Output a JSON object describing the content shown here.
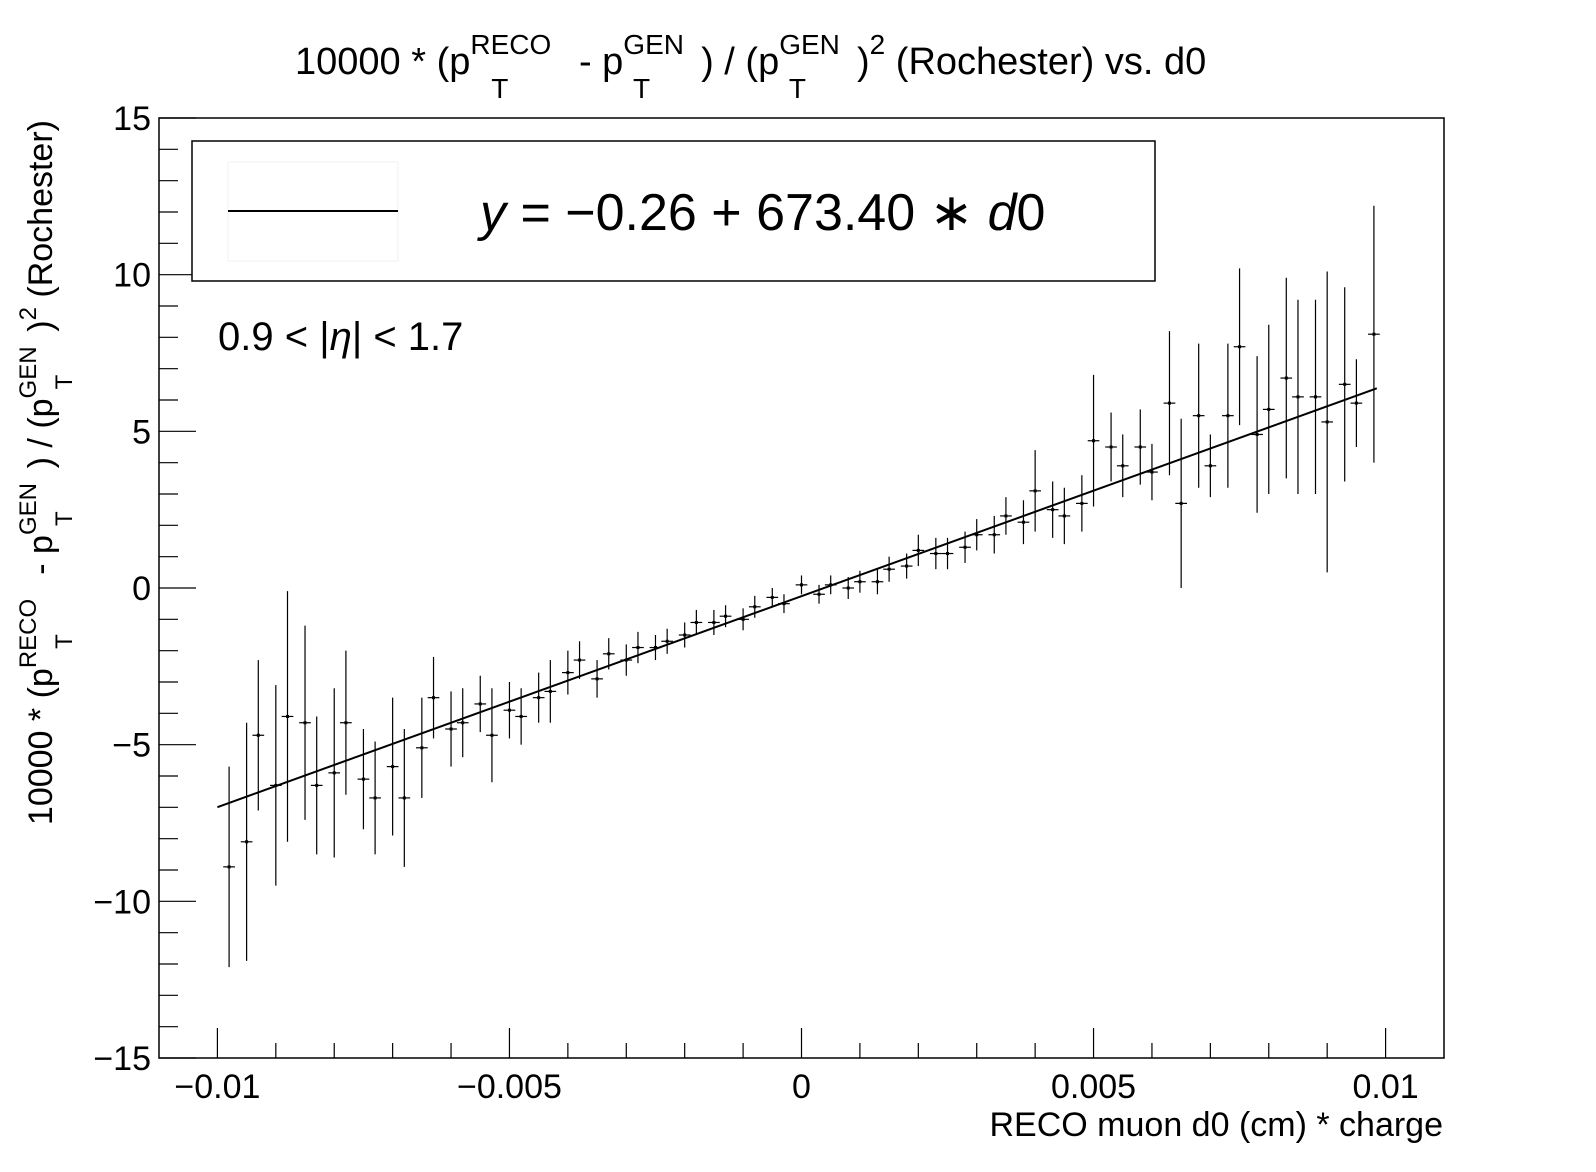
{
  "chart_data": {
    "type": "scatter",
    "title": {
      "main": "10000 * (p",
      "sup_reco": "RECO",
      "sub_t1": "T",
      "minus": " - p",
      "sup_gen1": "GEN",
      "sub_t2": "T",
      "div": ") / (p",
      "sup_gen2": "GEN",
      "sub_t3": "T",
      "close": ")",
      "sup_2": "2",
      "tail": "  (Rochester)  vs.  d0"
    },
    "xlabel": "RECO muon d0 (cm) * charge",
    "ylabel": {
      "p1": "10000 * (p",
      "sup_reco": "RECO",
      "sub_t1": "T",
      "p2": " - p",
      "sup_gen1": "GEN",
      "sub_t2": "T",
      "p3": ") / (p",
      "sup_gen2": "GEN",
      "sub_t3": "T",
      "p4": ")",
      "sup_2": "2",
      "p5": " (Rochester)"
    },
    "xlim": [
      -0.011,
      0.011
    ],
    "ylim": [
      -15,
      15
    ],
    "x_ticks": [
      -0.01,
      -0.005,
      0,
      0.005,
      0.01
    ],
    "x_tick_labels": [
      "−0.01",
      "−0.005",
      "0",
      "0.005",
      "0.01"
    ],
    "y_ticks": [
      -15,
      -10,
      -5,
      0,
      5,
      10,
      15
    ],
    "y_tick_labels": [
      "−15",
      "−10",
      "−5",
      "0",
      "5",
      "10",
      "15"
    ],
    "legend": {
      "position": "top-left",
      "entry": "y = −0.26 + 673.40 ∗ d0",
      "entry_parts": [
        "y",
        " = −0.26 + 673.40 ∗ ",
        "d",
        "0"
      ]
    },
    "annotation": {
      "text": "0.9 < |η| < 1.7",
      "parts": [
        "0.9 < |",
        "η",
        "| < 1.7"
      ]
    },
    "fit": {
      "intercept": -0.26,
      "slope": 673.4,
      "x_range": [
        -0.01,
        0.00985
      ]
    },
    "x_err": 0.0001,
    "points": [
      {
        "x": -0.0098,
        "y": -8.9,
        "err": 3.2
      },
      {
        "x": -0.0095,
        "y": -8.1,
        "err": 3.8
      },
      {
        "x": -0.0093,
        "y": -4.7,
        "err": 2.4
      },
      {
        "x": -0.009,
        "y": -6.3,
        "err": 3.2
      },
      {
        "x": -0.0088,
        "y": -4.1,
        "err": 4.0
      },
      {
        "x": -0.0085,
        "y": -4.3,
        "err": 3.1
      },
      {
        "x": -0.0083,
        "y": -6.3,
        "err": 2.2
      },
      {
        "x": -0.008,
        "y": -5.9,
        "err": 2.7
      },
      {
        "x": -0.0078,
        "y": -4.3,
        "err": 2.3
      },
      {
        "x": -0.0075,
        "y": -6.1,
        "err": 1.6
      },
      {
        "x": -0.0073,
        "y": -6.7,
        "err": 1.8
      },
      {
        "x": -0.007,
        "y": -5.7,
        "err": 2.2
      },
      {
        "x": -0.0068,
        "y": -6.7,
        "err": 2.2
      },
      {
        "x": -0.0065,
        "y": -5.1,
        "err": 1.6
      },
      {
        "x": -0.0063,
        "y": -3.5,
        "err": 1.3
      },
      {
        "x": -0.006,
        "y": -4.5,
        "err": 1.2
      },
      {
        "x": -0.0058,
        "y": -4.3,
        "err": 1.1
      },
      {
        "x": -0.0055,
        "y": -3.7,
        "err": 0.9
      },
      {
        "x": -0.0053,
        "y": -4.7,
        "err": 1.5
      },
      {
        "x": -0.005,
        "y": -3.9,
        "err": 0.9
      },
      {
        "x": -0.0048,
        "y": -4.1,
        "err": 0.9
      },
      {
        "x": -0.0045,
        "y": -3.5,
        "err": 0.8
      },
      {
        "x": -0.0043,
        "y": -3.3,
        "err": 1.0
      },
      {
        "x": -0.004,
        "y": -2.7,
        "err": 0.7
      },
      {
        "x": -0.0038,
        "y": -2.3,
        "err": 0.6
      },
      {
        "x": -0.0035,
        "y": -2.9,
        "err": 0.6
      },
      {
        "x": -0.0033,
        "y": -2.1,
        "err": 0.5
      },
      {
        "x": -0.003,
        "y": -2.3,
        "err": 0.5
      },
      {
        "x": -0.0028,
        "y": -1.9,
        "err": 0.5
      },
      {
        "x": -0.0025,
        "y": -1.9,
        "err": 0.4
      },
      {
        "x": -0.0023,
        "y": -1.7,
        "err": 0.4
      },
      {
        "x": -0.002,
        "y": -1.5,
        "err": 0.4
      },
      {
        "x": -0.0018,
        "y": -1.1,
        "err": 0.4
      },
      {
        "x": -0.0015,
        "y": -1.1,
        "err": 0.4
      },
      {
        "x": -0.0013,
        "y": -0.9,
        "err": 0.35
      },
      {
        "x": -0.001,
        "y": -1.0,
        "err": 0.35
      },
      {
        "x": -0.0008,
        "y": -0.6,
        "err": 0.35
      },
      {
        "x": -0.0005,
        "y": -0.3,
        "err": 0.3
      },
      {
        "x": -0.0003,
        "y": -0.5,
        "err": 0.3
      },
      {
        "x": 0.0,
        "y": 0.1,
        "err": 0.3
      },
      {
        "x": 0.0003,
        "y": -0.2,
        "err": 0.3
      },
      {
        "x": 0.0005,
        "y": 0.1,
        "err": 0.3
      },
      {
        "x": 0.0008,
        "y": 0.0,
        "err": 0.35
      },
      {
        "x": 0.001,
        "y": 0.2,
        "err": 0.35
      },
      {
        "x": 0.0013,
        "y": 0.2,
        "err": 0.4
      },
      {
        "x": 0.0015,
        "y": 0.6,
        "err": 0.4
      },
      {
        "x": 0.0018,
        "y": 0.7,
        "err": 0.4
      },
      {
        "x": 0.002,
        "y": 1.2,
        "err": 0.5
      },
      {
        "x": 0.0023,
        "y": 1.1,
        "err": 0.5
      },
      {
        "x": 0.0025,
        "y": 1.1,
        "err": 0.5
      },
      {
        "x": 0.0028,
        "y": 1.3,
        "err": 0.5
      },
      {
        "x": 0.003,
        "y": 1.7,
        "err": 0.5
      },
      {
        "x": 0.0033,
        "y": 1.7,
        "err": 0.6
      },
      {
        "x": 0.0035,
        "y": 2.3,
        "err": 0.6
      },
      {
        "x": 0.0038,
        "y": 2.1,
        "err": 0.7
      },
      {
        "x": 0.004,
        "y": 3.1,
        "err": 1.3
      },
      {
        "x": 0.0043,
        "y": 2.5,
        "err": 0.9
      },
      {
        "x": 0.0045,
        "y": 2.3,
        "err": 0.9
      },
      {
        "x": 0.0048,
        "y": 2.7,
        "err": 0.9
      },
      {
        "x": 0.005,
        "y": 4.7,
        "err": 2.1
      },
      {
        "x": 0.0053,
        "y": 4.5,
        "err": 1.1
      },
      {
        "x": 0.0055,
        "y": 3.9,
        "err": 1.0
      },
      {
        "x": 0.0058,
        "y": 4.5,
        "err": 1.2
      },
      {
        "x": 0.006,
        "y": 3.7,
        "err": 0.9
      },
      {
        "x": 0.0063,
        "y": 5.9,
        "err": 2.3
      },
      {
        "x": 0.0065,
        "y": 2.7,
        "err": 2.7
      },
      {
        "x": 0.0068,
        "y": 5.5,
        "err": 2.3
      },
      {
        "x": 0.007,
        "y": 3.9,
        "err": 1.0
      },
      {
        "x": 0.0073,
        "y": 5.5,
        "err": 2.3
      },
      {
        "x": 0.0075,
        "y": 7.7,
        "err": 2.5
      },
      {
        "x": 0.0078,
        "y": 4.9,
        "err": 2.5
      },
      {
        "x": 0.008,
        "y": 5.7,
        "err": 2.7
      },
      {
        "x": 0.0083,
        "y": 6.7,
        "err": 3.2
      },
      {
        "x": 0.0085,
        "y": 6.1,
        "err": 3.1
      },
      {
        "x": 0.0088,
        "y": 6.1,
        "err": 3.1
      },
      {
        "x": 0.009,
        "y": 5.3,
        "err": 4.8
      },
      {
        "x": 0.0093,
        "y": 6.5,
        "err": 3.1
      },
      {
        "x": 0.0095,
        "y": 5.9,
        "err": 1.4
      },
      {
        "x": 0.0098,
        "y": 8.1,
        "err": 4.1
      }
    ]
  }
}
